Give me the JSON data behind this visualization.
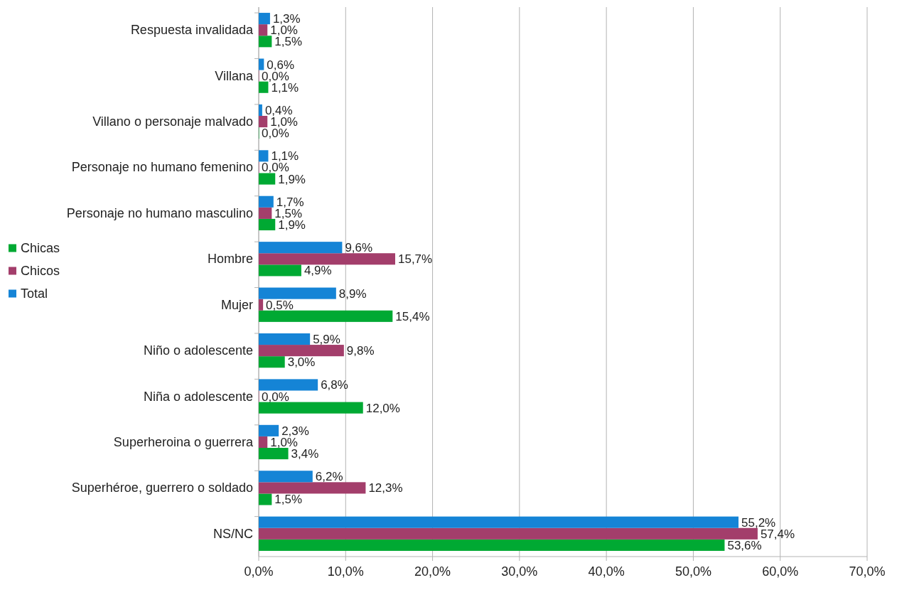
{
  "chart_data": {
    "type": "bar",
    "orientation": "horizontal",
    "categories": [
      "Respuesta invalidada",
      "Villana",
      "Villano o personaje malvado",
      "Personaje no humano femenino",
      "Personaje no humano masculino",
      "Hombre",
      "Mujer",
      "Niño o adolescente",
      "Niña o adolescente",
      "Superheroina o guerrera",
      "Superhéroe, guerrero o soldado",
      "NS/NC"
    ],
    "series": [
      {
        "name": "Chicas",
        "color": "#00a933",
        "values": [
          1.5,
          1.1,
          0.0,
          1.9,
          1.9,
          4.9,
          15.4,
          3.0,
          12.0,
          3.4,
          1.5,
          53.6
        ],
        "value_labels": [
          "1,5%",
          "1,1%",
          "0,0%",
          "1,9%",
          "1,9%",
          "4,9%",
          "15,4%",
          "3,0%",
          "12,0%",
          "3,4%",
          "1,5%",
          "53,6%"
        ]
      },
      {
        "name": "Chicos",
        "color": "#a33e6b",
        "values": [
          1.0,
          0.0,
          1.0,
          0.0,
          1.5,
          15.7,
          0.5,
          9.8,
          0.0,
          1.0,
          12.3,
          57.4
        ],
        "value_labels": [
          "1,0%",
          "0,0%",
          "1,0%",
          "0,0%",
          "1,5%",
          "15,7%",
          "0,5%",
          "9,8%",
          "0,0%",
          "1,0%",
          "12,3%",
          "57,4%"
        ]
      },
      {
        "name": "Total",
        "color": "#1584d6",
        "values": [
          1.3,
          0.6,
          0.4,
          1.1,
          1.7,
          9.6,
          8.9,
          5.9,
          6.8,
          2.3,
          6.2,
          55.2
        ],
        "value_labels": [
          "1,3%",
          "0,6%",
          "0,4%",
          "1,1%",
          "1,7%",
          "9,6%",
          "8,9%",
          "5,9%",
          "6,8%",
          "2,3%",
          "6,2%",
          "55,2%"
        ]
      }
    ],
    "xlim": [
      0,
      70
    ],
    "xticks": [
      {
        "value": 0,
        "label": "0,0%"
      },
      {
        "value": 10,
        "label": "10,0%"
      },
      {
        "value": 20,
        "label": "20,0%"
      },
      {
        "value": 30,
        "label": "30,0%"
      },
      {
        "value": 40,
        "label": "40,0%"
      },
      {
        "value": 50,
        "label": "50,0%"
      },
      {
        "value": 60,
        "label": "60,0%"
      },
      {
        "value": 70,
        "label": "70,0%"
      }
    ],
    "grid": "x",
    "legend": "left"
  }
}
